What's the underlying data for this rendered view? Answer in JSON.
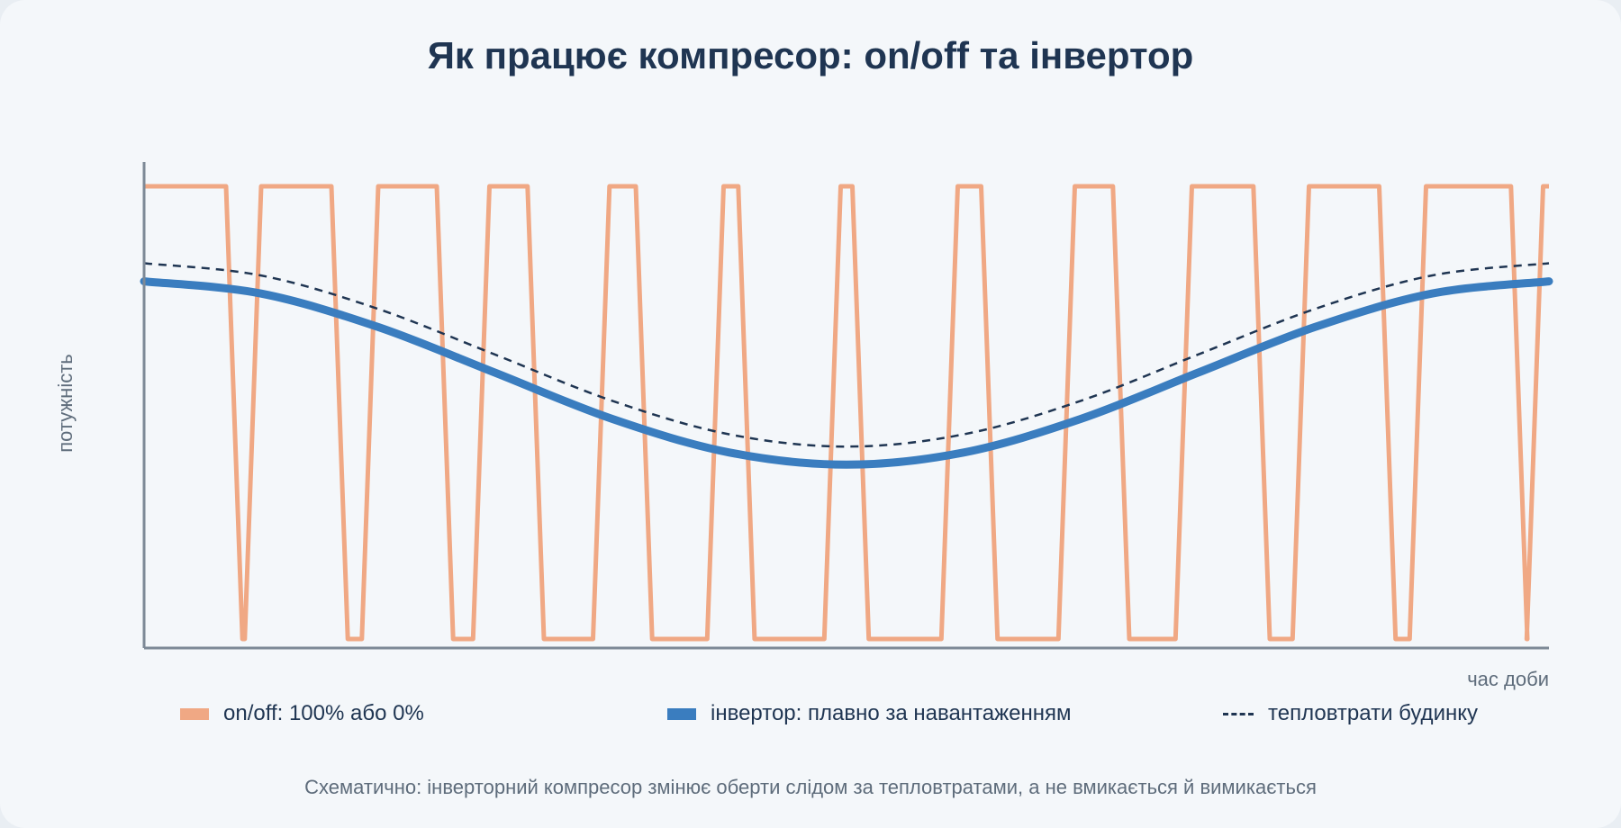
{
  "title": "Як працює компресор: on/off та інвертор",
  "caption": "Схематично: інверторний компресор змінює оберти слідом за тепловтратами, а не вмикається й вимикається",
  "colors": {
    "onoff": "#f0a884",
    "inverter": "#3a7dbf",
    "heat_loss": "#1f3552",
    "axis": "#7d8996"
  },
  "chart_data": {
    "type": "line",
    "title": "Як працює компресор: on/off та інвертор",
    "xlabel": "час доби",
    "ylabel": "потужність",
    "x_ticks": [],
    "y_ticks": [],
    "xlim": [
      0,
      24
    ],
    "ylim": [
      0,
      100
    ],
    "grid": false,
    "legend_position": "bottom",
    "series": [
      {
        "name": "on/off: 100% або 0%",
        "style": "step",
        "color": "#f0a884",
        "on_intervals": [
          [
            0,
            1.4
          ],
          [
            2.0,
            3.2
          ],
          [
            4.0,
            5.0
          ],
          [
            5.9,
            6.55
          ],
          [
            7.95,
            8.4
          ],
          [
            9.9,
            10.15
          ],
          [
            11.9,
            12.1
          ],
          [
            13.9,
            14.3
          ],
          [
            15.9,
            16.55
          ],
          [
            17.9,
            18.95
          ],
          [
            19.9,
            21.1
          ],
          [
            21.9,
            23.35
          ],
          [
            23.9,
            24
          ]
        ],
        "on_value": 100,
        "off_value": 0
      },
      {
        "name": "інвертор: плавно за навантаженням",
        "style": "solid",
        "color": "#3a7dbf",
        "x": [
          0,
          2,
          4,
          6,
          8,
          10,
          12,
          14,
          16,
          18,
          20,
          22,
          24
        ],
        "values": [
          79,
          76.3,
          68.9,
          58.8,
          48.6,
          41.2,
          38.5,
          41.2,
          48.6,
          58.8,
          68.9,
          76.3,
          79
        ]
      },
      {
        "name": "тепловтрати будинку",
        "style": "dashed",
        "color": "#1f3552",
        "x": [
          0,
          2,
          4,
          6,
          8,
          10,
          12,
          14,
          16,
          18,
          20,
          22,
          24
        ],
        "values": [
          83,
          80.3,
          72.9,
          62.8,
          52.6,
          45.2,
          42.5,
          45.2,
          52.6,
          62.8,
          72.9,
          80.3,
          83
        ]
      }
    ]
  }
}
